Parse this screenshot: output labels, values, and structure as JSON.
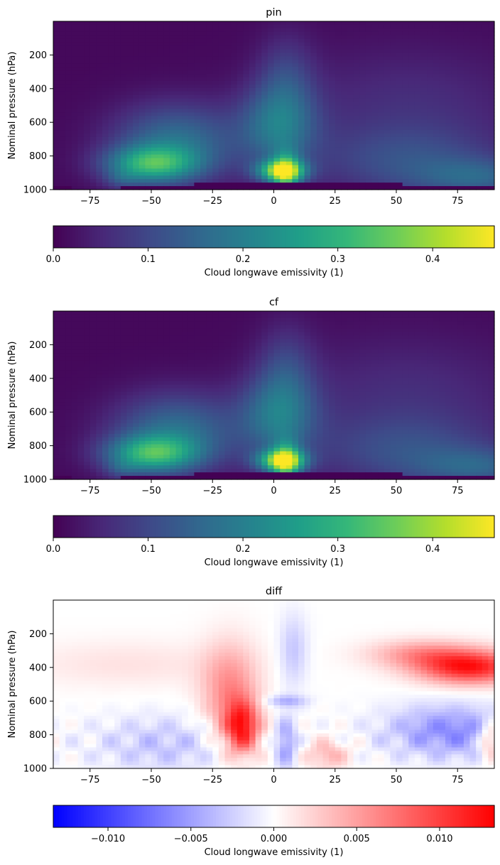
{
  "chart_data": [
    {
      "type": "heatmap",
      "title": "pin",
      "ylabel": "Nominal pressure (hPa)",
      "xlim": [
        -90,
        90
      ],
      "ylim": [
        1000,
        0
      ],
      "xticks": [
        -75,
        -50,
        -25,
        0,
        25,
        50,
        75
      ],
      "xtick_labels": [
        "−75",
        "−50",
        "−25",
        "0",
        "25",
        "50",
        "75"
      ],
      "yticks": [
        200,
        400,
        600,
        800,
        1000
      ],
      "ytick_labels": [
        "200",
        "400",
        "600",
        "800",
        "1000"
      ],
      "colormap": "viridis",
      "colorbar": {
        "label": "Cloud longwave emissivity (1)",
        "range": [
          0,
          0.465
        ],
        "ticks": [
          0.0,
          0.1,
          0.2,
          0.3,
          0.4
        ],
        "tick_labels": [
          "0.0",
          "0.1",
          "0.2",
          "0.3",
          "0.4"
        ]
      }
    },
    {
      "type": "heatmap",
      "title": "cf",
      "ylabel": "Nominal pressure (hPa)",
      "xlim": [
        -90,
        90
      ],
      "ylim": [
        1000,
        0
      ],
      "xticks": [
        -75,
        -50,
        -25,
        0,
        25,
        50,
        75
      ],
      "xtick_labels": [
        "−75",
        "−50",
        "−25",
        "0",
        "25",
        "50",
        "75"
      ],
      "yticks": [
        200,
        400,
        600,
        800,
        1000
      ],
      "ytick_labels": [
        "200",
        "400",
        "600",
        "800",
        "1000"
      ],
      "colormap": "viridis",
      "colorbar": {
        "label": "Cloud longwave emissivity (1)",
        "range": [
          0,
          0.465
        ],
        "ticks": [
          0.0,
          0.1,
          0.2,
          0.3,
          0.4
        ],
        "tick_labels": [
          "0.0",
          "0.1",
          "0.2",
          "0.3",
          "0.4"
        ]
      }
    },
    {
      "type": "heatmap",
      "title": "diff",
      "ylabel": "Nominal pressure (hPa)",
      "xlim": [
        -90,
        90
      ],
      "ylim": [
        1000,
        0
      ],
      "xticks": [
        -75,
        -50,
        -25,
        0,
        25,
        50,
        75
      ],
      "xtick_labels": [
        "−75",
        "−50",
        "−25",
        "0",
        "25",
        "50",
        "75"
      ],
      "yticks": [
        200,
        400,
        600,
        800,
        1000
      ],
      "ytick_labels": [
        "200",
        "400",
        "600",
        "800",
        "1000"
      ],
      "colormap": "bwr",
      "colorbar": {
        "label": "Cloud longwave emissivity (1)",
        "range": [
          -0.0133,
          0.0133
        ],
        "ticks": [
          -0.01,
          -0.005,
          0.0,
          0.005,
          0.01
        ],
        "tick_labels": [
          "−0.010",
          "−0.005",
          "0.000",
          "0.005",
          "0.010"
        ]
      }
    }
  ]
}
